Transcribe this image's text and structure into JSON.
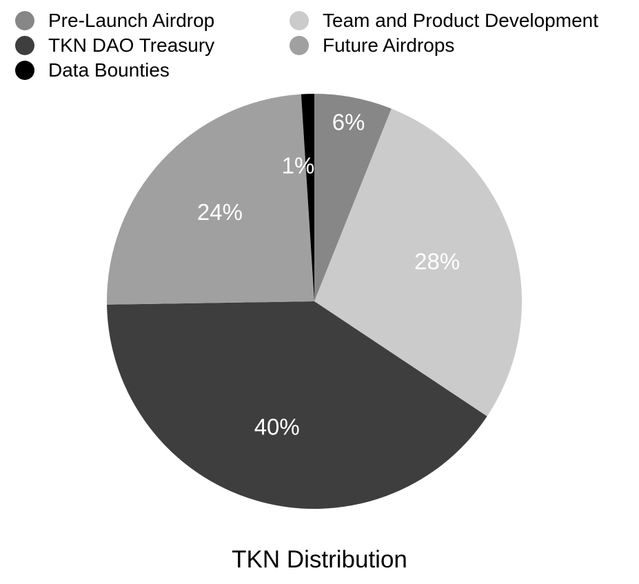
{
  "chart_data": {
    "type": "pie",
    "title": "TKN Distribution",
    "start_angle": "top (12 o'clock), clockwise",
    "categories": [
      "Pre-Launch Airdrop",
      "Team and Product Development",
      "TKN DAO Treasury",
      "Future Airdrops",
      "Data Bounties"
    ],
    "values": [
      6,
      28,
      40,
      24,
      1
    ],
    "labels": [
      "6%",
      "28%",
      "40%",
      "24%",
      "1%"
    ],
    "colors": [
      "#878787",
      "#cbcbcb",
      "#3e3e3e",
      "#a0a0a0",
      "#000000"
    ],
    "legend_position": "top"
  },
  "legend": {
    "items": [
      {
        "label": "Pre-Launch Airdrop",
        "color": "#878787"
      },
      {
        "label": "Team and Product Development",
        "color": "#cbcbcb"
      },
      {
        "label": "TKN DAO Treasury",
        "color": "#3e3e3e"
      },
      {
        "label": "Future Airdrops",
        "color": "#a0a0a0"
      },
      {
        "label": "Data Bounties",
        "color": "#000000"
      }
    ]
  },
  "title": "TKN Distribution"
}
